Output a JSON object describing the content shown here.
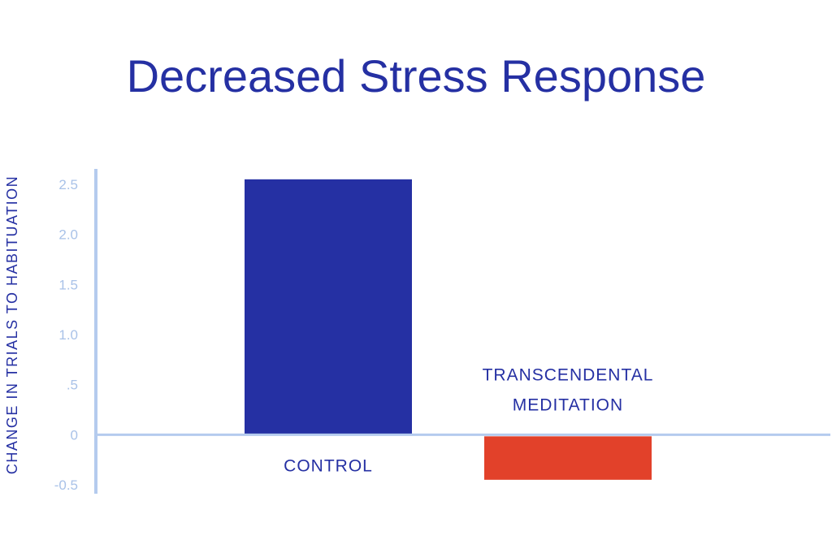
{
  "chart_data": {
    "type": "bar",
    "title": "Decreased Stress Response",
    "ylabel": "CHANGE IN TRIALS TO HABITUATION",
    "xlabel": "",
    "ylim": [
      -0.5,
      2.5
    ],
    "y_ticks": [
      {
        "value": 2.5,
        "label": "2.5"
      },
      {
        "value": 2.0,
        "label": "2.0"
      },
      {
        "value": 1.5,
        "label": "1.5"
      },
      {
        "value": 1.0,
        "label": "1.0"
      },
      {
        "value": 0.5,
        "label": ".5"
      },
      {
        "value": 0,
        "label": "0"
      },
      {
        "value": -0.5,
        "label": "-0.5"
      }
    ],
    "categories": [
      {
        "label_lines": [
          "CONTROL"
        ],
        "color": "#2530a3"
      },
      {
        "label_lines": [
          "TRANSCENDENTAL",
          "MEDITATION"
        ],
        "color": "#e2412a"
      }
    ],
    "values": [
      2.55,
      -0.45
    ],
    "axis_color": "#b4cbee",
    "grid": false,
    "legend": "none"
  }
}
